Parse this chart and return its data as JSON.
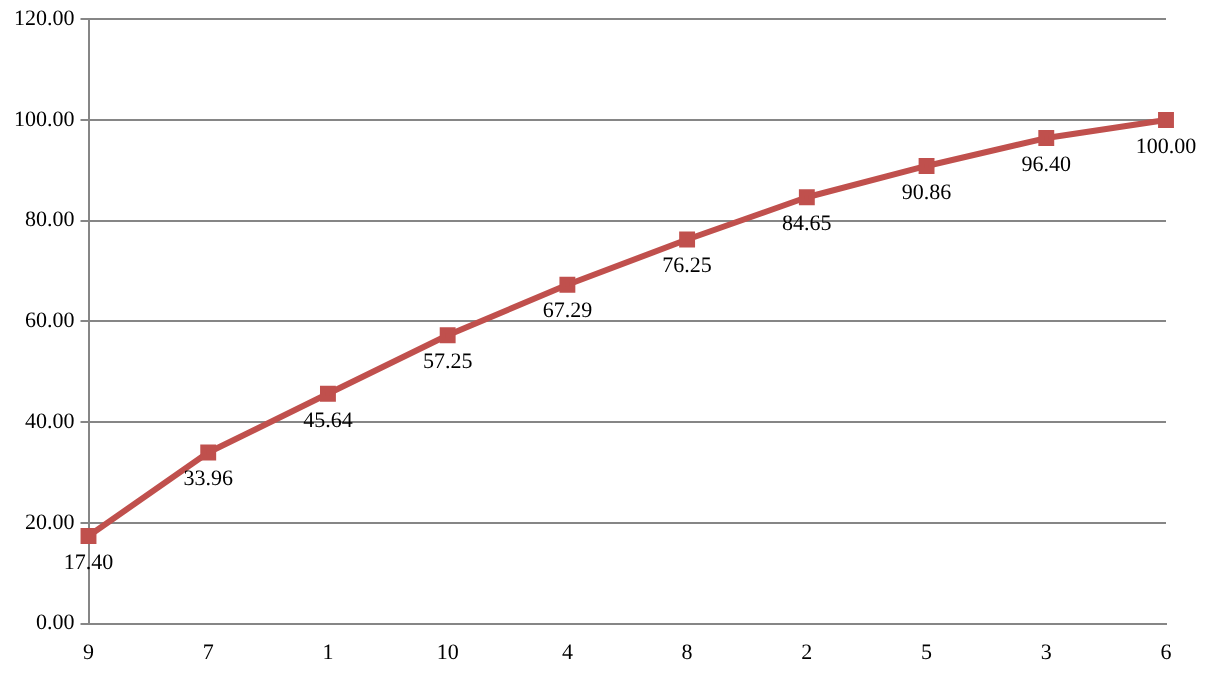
{
  "chart_data": {
    "type": "line",
    "categories": [
      "9",
      "7",
      "1",
      "10",
      "4",
      "8",
      "2",
      "5",
      "3",
      "6"
    ],
    "series": [
      {
        "color": "#c0504d",
        "values": [
          17.4,
          33.96,
          45.64,
          57.25,
          67.29,
          76.25,
          84.65,
          90.86,
          96.4,
          100.0
        ],
        "value_labels": [
          "17.40",
          "33.96",
          "45.64",
          "57.25",
          "67.29",
          "76.25",
          "84.65",
          "90.86",
          "96.40",
          "100.00"
        ]
      }
    ],
    "ylim": [
      0,
      120
    ],
    "yticks": [
      {
        "value": 0,
        "label": "0.00"
      },
      {
        "value": 20,
        "label": "20.00"
      },
      {
        "value": 40,
        "label": "40.00"
      },
      {
        "value": 60,
        "label": "60.00"
      },
      {
        "value": 80,
        "label": "80.00"
      },
      {
        "value": 100,
        "label": "100.00"
      },
      {
        "value": 120,
        "label": "120.00"
      }
    ],
    "grid": "y",
    "legend": false,
    "marker": "square",
    "line_style": "solid"
  }
}
